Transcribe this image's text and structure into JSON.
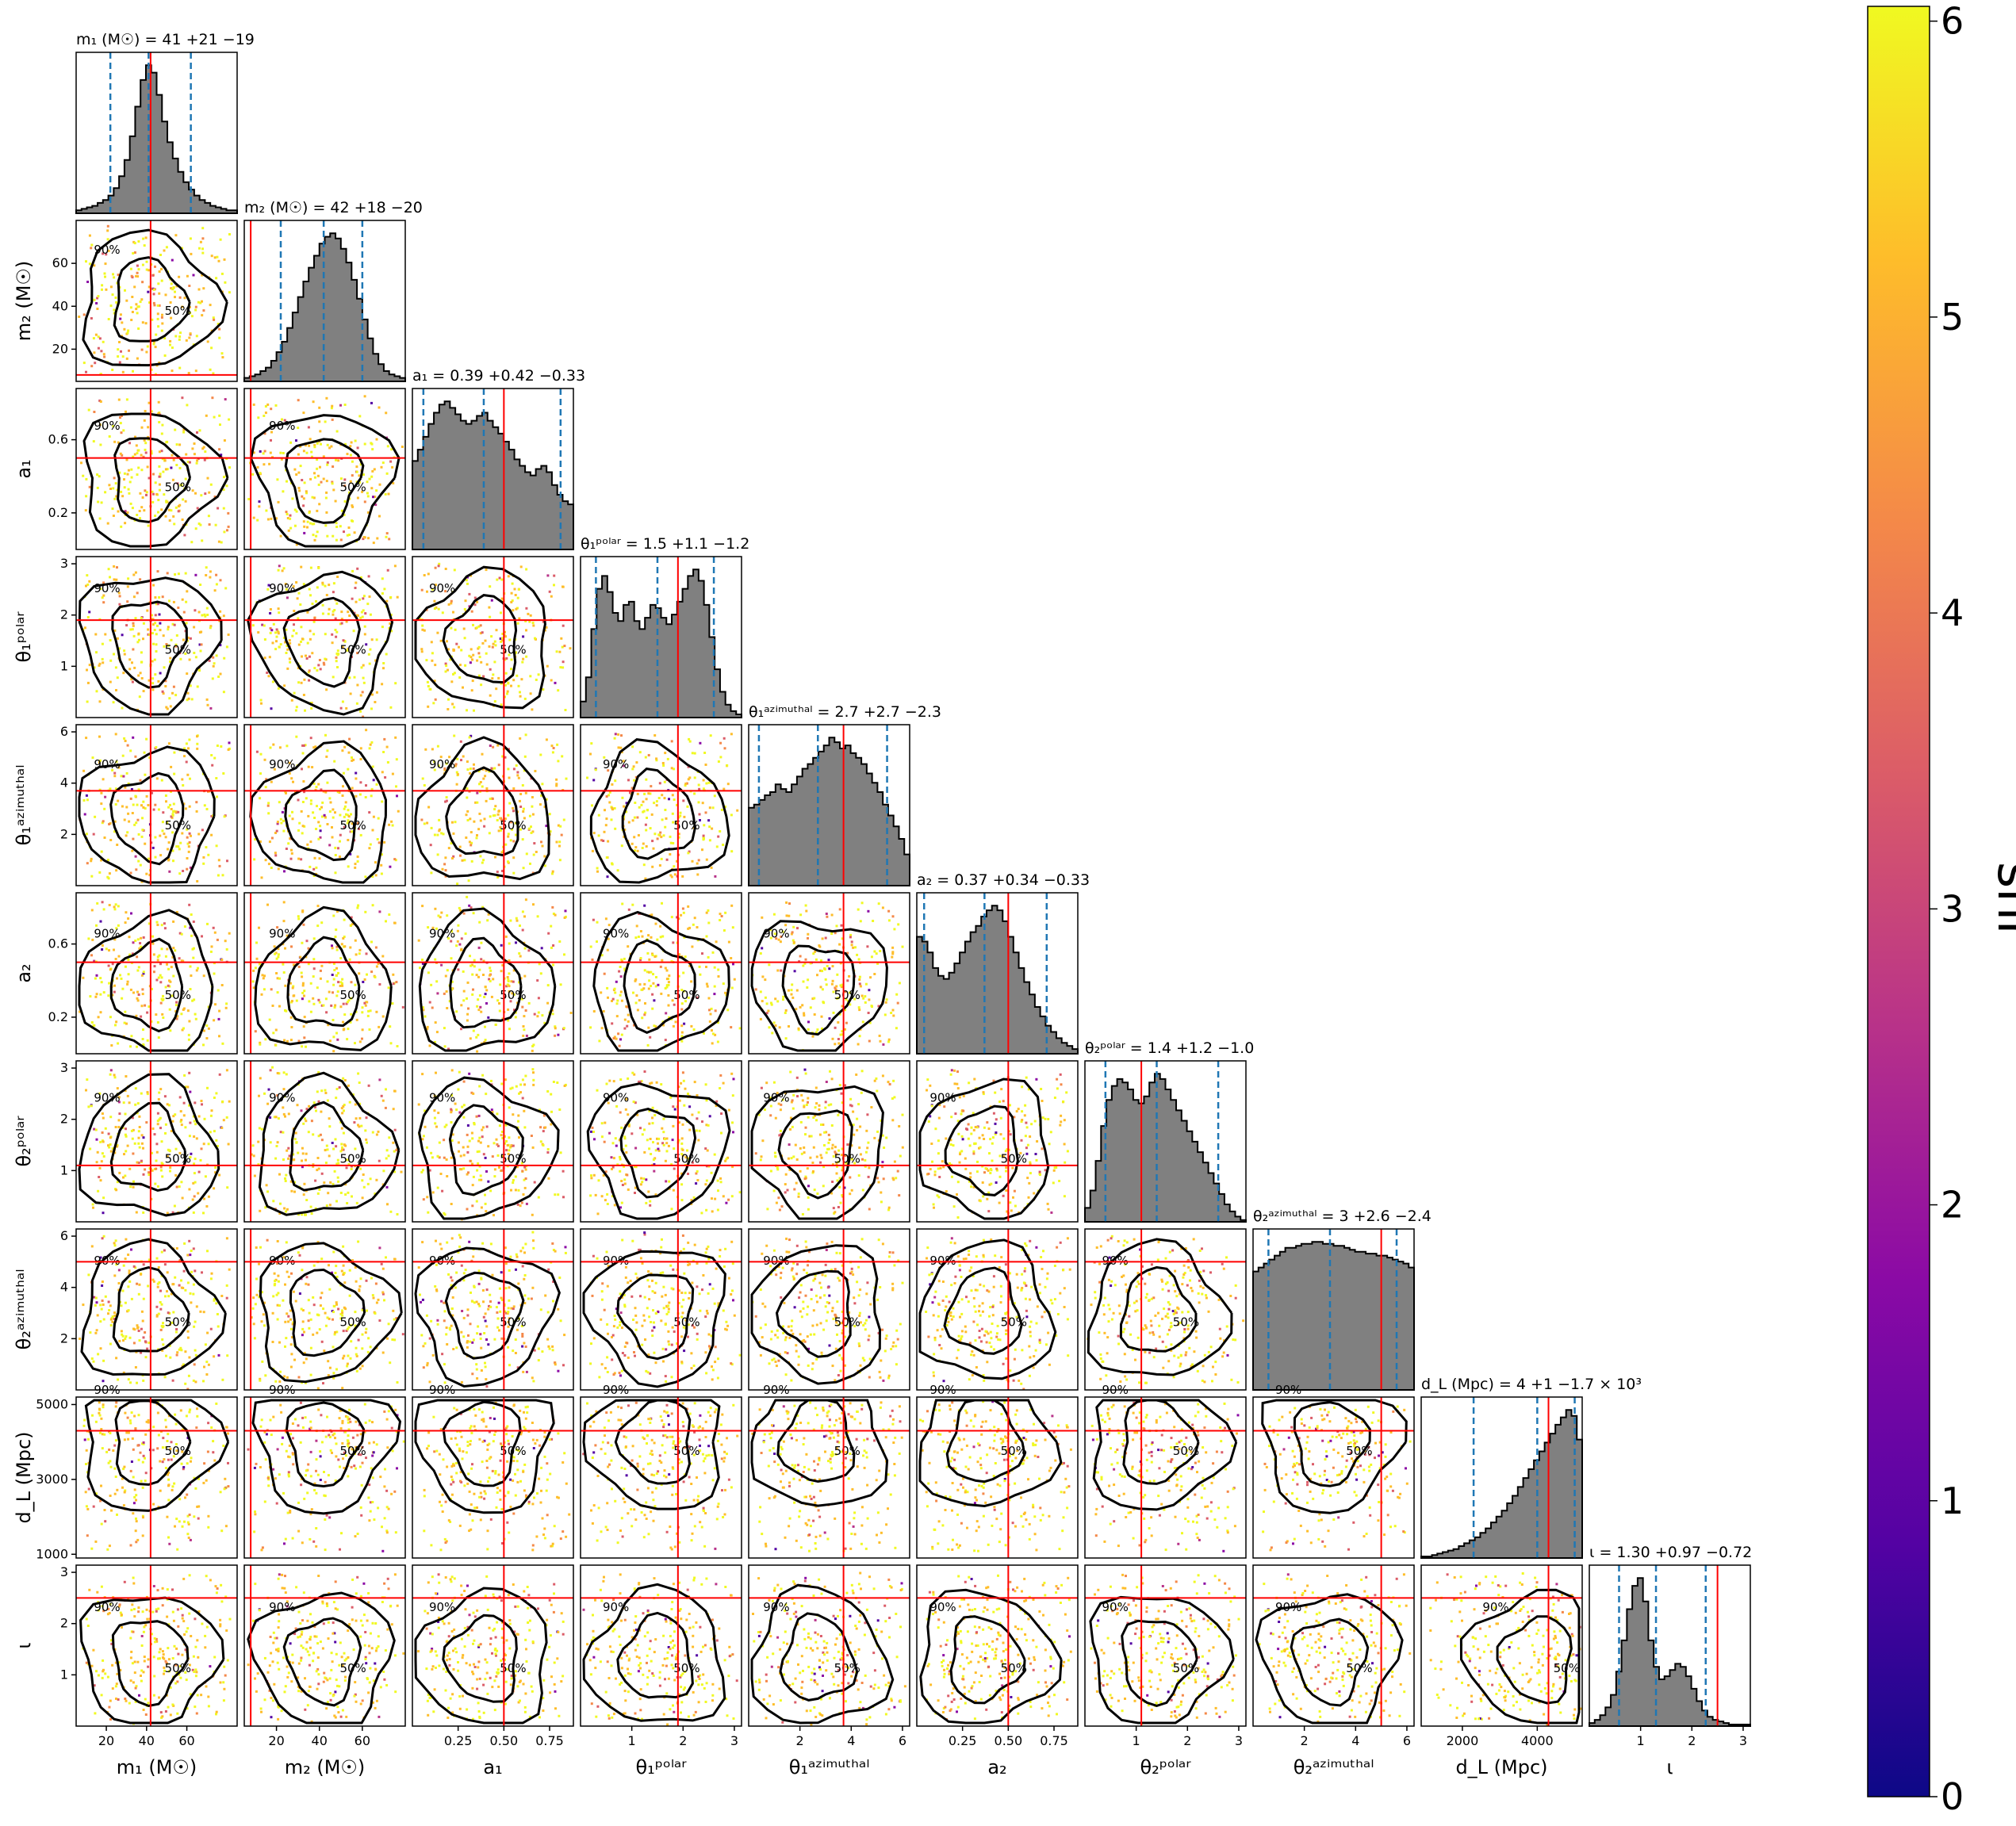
{
  "chart_data": {
    "type": "corner",
    "params": [
      {
        "key": "m1",
        "title": "m₁ (M☉) = 41 +21 −19",
        "xlabel": "m₁ (M☉)",
        "ylabel": "m₁ (M☉)",
        "range": [
          5,
          85
        ],
        "ticks": [
          20,
          40,
          60
        ],
        "tick_labels": [
          "20",
          "40",
          "60"
        ],
        "truth": 42,
        "median": 41,
        "lower": 22,
        "upper": 62
      },
      {
        "key": "m2",
        "title": "m₂ (M☉) = 42 +18 −20",
        "xlabel": "m₂ (M☉)",
        "ylabel": "m₂ (M☉)",
        "range": [
          5,
          80
        ],
        "ticks": [
          20,
          40,
          60
        ],
        "tick_labels": [
          "20",
          "40",
          "60"
        ],
        "truth": 8,
        "median": 42,
        "lower": 22,
        "upper": 60
      },
      {
        "key": "a1",
        "title": "a₁ = 0.39 +0.42 −0.33",
        "xlabel": "a₁",
        "ylabel": "a₁",
        "range": [
          0,
          0.88
        ],
        "ticks": [
          0.2,
          0.6
        ],
        "xticks": [
          0.25,
          0.5,
          0.75
        ],
        "tick_labels": [
          "0.2",
          "0.6"
        ],
        "xtick_labels": [
          "0.25",
          "0.50",
          "0.75"
        ],
        "truth": 0.5,
        "median": 0.39,
        "lower": 0.06,
        "upper": 0.81
      },
      {
        "key": "theta1p",
        "title": "θ₁ᵖᵒˡᵃʳ = 1.5 +1.1 −1.2",
        "xlabel": "θ₁ᵖᵒˡᵃʳ",
        "ylabel": "θ₁ᵖᵒˡᵃʳ",
        "range": [
          0,
          3.14
        ],
        "ticks": [
          1,
          2,
          3
        ],
        "tick_labels": [
          "1",
          "2",
          "3"
        ],
        "truth": 1.9,
        "median": 1.5,
        "lower": 0.3,
        "upper": 2.6
      },
      {
        "key": "theta1a",
        "title": "θ₁ᵃᶻⁱᵐᵘᵗʰᵃˡ = 2.7 +2.7 −2.3",
        "xlabel": "θ₁ᵃᶻⁱᵐᵘᵗʰᵃˡ",
        "ylabel": "θ₁ᵃᶻⁱᵐᵘᵗʰᵃˡ",
        "range": [
          0,
          6.28
        ],
        "ticks": [
          2,
          4,
          6
        ],
        "tick_labels": [
          "2",
          "4",
          "6"
        ],
        "truth": 3.7,
        "median": 2.7,
        "lower": 0.4,
        "upper": 5.4
      },
      {
        "key": "a2",
        "title": "a₂ = 0.37 +0.34 −0.33",
        "xlabel": "a₂",
        "ylabel": "a₂",
        "range": [
          0,
          0.88
        ],
        "ticks": [
          0.2,
          0.6
        ],
        "xticks": [
          0.25,
          0.5,
          0.75
        ],
        "tick_labels": [
          "0.2",
          "0.6"
        ],
        "xtick_labels": [
          "0.25",
          "0.50",
          "0.75"
        ],
        "truth": 0.5,
        "median": 0.37,
        "lower": 0.04,
        "upper": 0.71
      },
      {
        "key": "theta2p",
        "title": "θ₂ᵖᵒˡᵃʳ = 1.4 +1.2 −1.0",
        "xlabel": "θ₂ᵖᵒˡᵃʳ",
        "ylabel": "θ₂ᵖᵒˡᵃʳ",
        "range": [
          0,
          3.14
        ],
        "ticks": [
          1,
          2,
          3
        ],
        "tick_labels": [
          "1",
          "2",
          "3"
        ],
        "truth": 1.1,
        "median": 1.4,
        "lower": 0.4,
        "upper": 2.6
      },
      {
        "key": "theta2a",
        "title": "θ₂ᵃᶻⁱᵐᵘᵗʰᵃˡ = 3 +2.6 −2.4",
        "xlabel": "θ₂ᵃᶻⁱᵐᵘᵗʰᵃˡ",
        "ylabel": "θ₂ᵃᶻⁱᵐᵘᵗʰᵃˡ",
        "range": [
          0,
          6.28
        ],
        "ticks": [
          2,
          4,
          6
        ],
        "tick_labels": [
          "2",
          "4",
          "6"
        ],
        "truth": 5.0,
        "median": 3.0,
        "lower": 0.6,
        "upper": 5.6
      },
      {
        "key": "dL",
        "title": "d_L (Mpc) = 4 +1 −1.7 × 10³",
        "xlabel": "d_L (Mpc)",
        "ylabel": "d_L (Mpc)",
        "range": [
          900,
          5200
        ],
        "ticks": [
          1000,
          3000,
          5000
        ],
        "xticks": [
          2000,
          4000
        ],
        "tick_labels": [
          "1000",
          "3000",
          "5000"
        ],
        "xtick_labels": [
          "2000",
          "4000"
        ],
        "truth": 4300,
        "median": 4000,
        "lower": 2300,
        "upper": 5000
      },
      {
        "key": "iota",
        "title": "ι = 1.30 +0.97 −0.72",
        "xlabel": "ι",
        "ylabel": "ι",
        "range": [
          0,
          3.14
        ],
        "ticks": [
          1,
          2,
          3
        ],
        "tick_labels": [
          "1",
          "2",
          "3"
        ],
        "truth": 2.5,
        "median": 1.3,
        "lower": 0.58,
        "upper": 2.27
      }
    ],
    "histograms": {
      "m1": [
        2,
        3,
        4,
        5,
        7,
        9,
        12,
        17,
        25,
        36,
        52,
        72,
        90,
        100,
        95,
        80,
        62,
        48,
        37,
        28,
        21,
        16,
        12,
        9,
        7,
        5,
        4,
        3,
        2,
        2
      ],
      "m2": [
        2,
        3,
        4,
        6,
        8,
        12,
        17,
        23,
        31,
        40,
        49,
        58,
        66,
        73,
        80,
        84,
        86,
        83,
        77,
        69,
        59,
        48,
        36,
        25,
        16,
        10,
        6,
        4,
        3,
        2
      ],
      "a1": [
        55,
        62,
        70,
        78,
        85,
        90,
        92,
        88,
        84,
        80,
        78,
        80,
        83,
        85,
        80,
        76,
        72,
        67,
        62,
        56,
        52,
        48,
        46,
        50,
        52,
        48,
        40,
        34,
        30,
        28
      ],
      "theta1p": [
        10,
        25,
        55,
        80,
        88,
        78,
        65,
        60,
        70,
        72,
        60,
        55,
        62,
        70,
        68,
        62,
        58,
        64,
        72,
        80,
        88,
        92,
        85,
        70,
        50,
        30,
        16,
        8,
        4,
        2
      ],
      "theta1a": [
        50,
        52,
        55,
        58,
        60,
        65,
        62,
        60,
        65,
        70,
        75,
        78,
        82,
        86,
        90,
        95,
        92,
        88,
        90,
        85,
        82,
        78,
        72,
        66,
        60,
        52,
        45,
        38,
        30,
        20
      ],
      "a2": [
        75,
        72,
        65,
        55,
        50,
        48,
        52,
        58,
        65,
        72,
        78,
        82,
        88,
        92,
        95,
        92,
        85,
        75,
        65,
        55,
        46,
        38,
        30,
        24,
        18,
        14,
        10,
        7,
        5,
        3
      ],
      "theta2p": [
        8,
        18,
        35,
        55,
        70,
        78,
        82,
        80,
        76,
        70,
        68,
        72,
        80,
        85,
        82,
        76,
        70,
        64,
        58,
        52,
        46,
        40,
        34,
        28,
        22,
        16,
        10,
        6,
        3,
        1
      ],
      "theta2a": [
        60,
        62,
        64,
        66,
        68,
        70,
        72,
        72,
        73,
        74,
        74,
        75,
        75,
        74,
        74,
        73,
        73,
        72,
        71,
        70,
        70,
        69,
        69,
        68,
        68,
        67,
        66,
        65,
        64,
        62
      ],
      "dL": [
        1,
        1,
        2,
        3,
        4,
        5,
        6,
        8,
        10,
        12,
        14,
        17,
        20,
        24,
        28,
        32,
        37,
        42,
        48,
        54,
        60,
        66,
        72,
        78,
        84,
        90,
        95,
        100,
        96,
        80
      ],
      "iota": [
        2,
        4,
        7,
        12,
        20,
        35,
        55,
        75,
        90,
        95,
        80,
        55,
        38,
        30,
        32,
        36,
        40,
        38,
        32,
        24,
        16,
        10,
        6,
        4,
        3,
        2,
        1,
        1,
        1,
        1
      ]
    },
    "contour_levels": [
      "50%",
      "90%"
    ],
    "colorbar": {
      "label": "snr",
      "min": 0,
      "max": 6.05,
      "ticks": [
        0,
        1,
        2,
        3,
        4,
        5,
        6
      ],
      "tick_labels": [
        "0",
        "1",
        "2",
        "3",
        "4",
        "5",
        "6"
      ],
      "colormap": "plasma"
    },
    "colors": {
      "truth_line": "#ff0000",
      "quantile_line": "#1f77b4",
      "hist_fill": "#808080",
      "contour": "#000000"
    }
  }
}
